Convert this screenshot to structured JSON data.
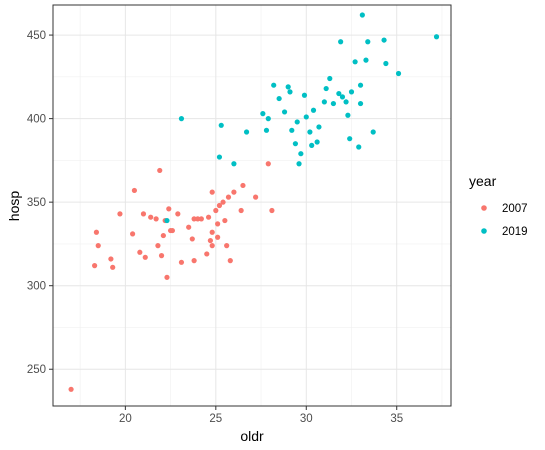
{
  "chart_data": {
    "type": "scatter",
    "xlabel": "oldr",
    "ylabel": "hosp",
    "xlim": [
      16.0,
      38.0
    ],
    "ylim": [
      228,
      468
    ],
    "x_ticks": [
      20,
      25,
      30,
      35
    ],
    "y_ticks": [
      250,
      300,
      350,
      400,
      450
    ],
    "grid": true,
    "legend": {
      "title": "year",
      "position": "right"
    },
    "series": [
      {
        "name": "2007",
        "color": "#F8766D",
        "points": [
          [
            17.0,
            238
          ],
          [
            18.3,
            312
          ],
          [
            18.4,
            332
          ],
          [
            18.5,
            324
          ],
          [
            19.2,
            316
          ],
          [
            19.3,
            311
          ],
          [
            19.7,
            343
          ],
          [
            20.4,
            331
          ],
          [
            20.5,
            357
          ],
          [
            20.8,
            320
          ],
          [
            21.0,
            343
          ],
          [
            21.1,
            317
          ],
          [
            21.4,
            341
          ],
          [
            21.7,
            340
          ],
          [
            21.8,
            324
          ],
          [
            21.9,
            369
          ],
          [
            22.0,
            318
          ],
          [
            22.1,
            330
          ],
          [
            22.2,
            339
          ],
          [
            22.3,
            305
          ],
          [
            22.4,
            346
          ],
          [
            22.5,
            333
          ],
          [
            22.6,
            333
          ],
          [
            22.9,
            343
          ],
          [
            23.1,
            314
          ],
          [
            23.5,
            335
          ],
          [
            23.7,
            328
          ],
          [
            23.8,
            315
          ],
          [
            23.8,
            340
          ],
          [
            24.0,
            340
          ],
          [
            24.2,
            340
          ],
          [
            24.5,
            319
          ],
          [
            24.6,
            341
          ],
          [
            24.7,
            327
          ],
          [
            24.8,
            324
          ],
          [
            24.8,
            332
          ],
          [
            24.8,
            356
          ],
          [
            25.0,
            345
          ],
          [
            25.1,
            329
          ],
          [
            25.1,
            337
          ],
          [
            25.2,
            348
          ],
          [
            25.4,
            350
          ],
          [
            25.5,
            339
          ],
          [
            25.6,
            324
          ],
          [
            25.7,
            353
          ],
          [
            25.8,
            315
          ],
          [
            26.0,
            356
          ],
          [
            26.4,
            345
          ],
          [
            26.5,
            360
          ],
          [
            27.2,
            353
          ],
          [
            27.9,
            373
          ],
          [
            28.1,
            345
          ]
        ]
      },
      {
        "name": "2019",
        "color": "#00BFC4",
        "points": [
          [
            22.3,
            339
          ],
          [
            23.1,
            400
          ],
          [
            25.2,
            377
          ],
          [
            25.3,
            396
          ],
          [
            26.0,
            373
          ],
          [
            26.7,
            392
          ],
          [
            27.6,
            403
          ],
          [
            27.8,
            393
          ],
          [
            27.9,
            400
          ],
          [
            28.2,
            420
          ],
          [
            28.5,
            412
          ],
          [
            28.8,
            404
          ],
          [
            29.0,
            419
          ],
          [
            29.1,
            416
          ],
          [
            29.2,
            393
          ],
          [
            29.4,
            385
          ],
          [
            29.5,
            398
          ],
          [
            29.6,
            373
          ],
          [
            29.7,
            379
          ],
          [
            29.9,
            414
          ],
          [
            30.0,
            401
          ],
          [
            30.2,
            392
          ],
          [
            30.3,
            384
          ],
          [
            30.4,
            405
          ],
          [
            30.6,
            386
          ],
          [
            30.7,
            395
          ],
          [
            31.0,
            410
          ],
          [
            31.1,
            418
          ],
          [
            31.3,
            424
          ],
          [
            31.5,
            409
          ],
          [
            31.8,
            415
          ],
          [
            31.9,
            446
          ],
          [
            32.0,
            413
          ],
          [
            32.2,
            410
          ],
          [
            32.3,
            402
          ],
          [
            32.4,
            388
          ],
          [
            32.5,
            416
          ],
          [
            32.7,
            434
          ],
          [
            32.9,
            383
          ],
          [
            33.0,
            420
          ],
          [
            33.0,
            409
          ],
          [
            33.1,
            462
          ],
          [
            33.3,
            435
          ],
          [
            33.4,
            446
          ],
          [
            33.7,
            392
          ],
          [
            34.3,
            447
          ],
          [
            34.4,
            433
          ],
          [
            35.1,
            427
          ],
          [
            37.2,
            449
          ]
        ]
      }
    ]
  }
}
